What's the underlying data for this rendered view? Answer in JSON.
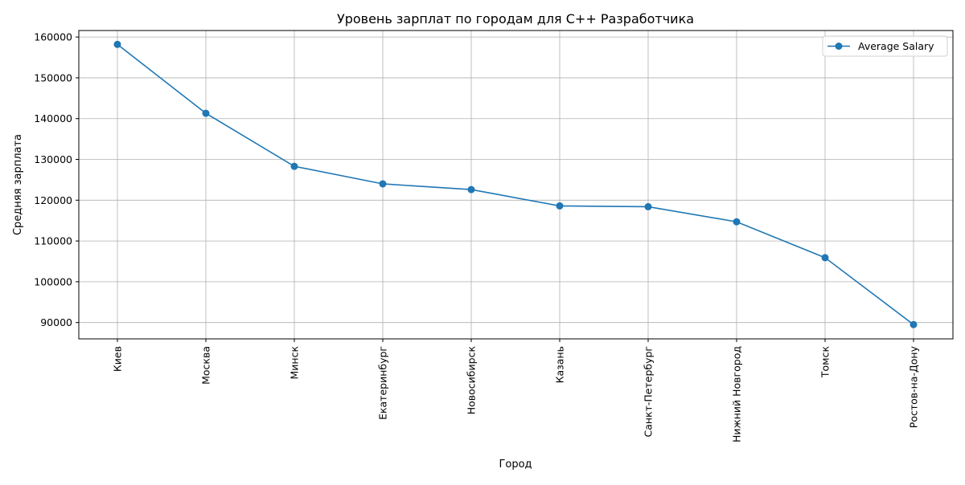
{
  "chart_data": {
    "type": "line",
    "title": "Уровень зарплат по городам для C++ Разработчика",
    "xlabel": "Город",
    "ylabel": "Средняя зарплата",
    "categories": [
      "Киев",
      "Москва",
      "Минск",
      "Екатеринбург",
      "Новосибирск",
      "Казань",
      "Санкт-Петербург",
      "Нижний Новгород",
      "Томск",
      "Ростов-на-Дону"
    ],
    "series": [
      {
        "name": "Average Salary",
        "values": [
          158200,
          141300,
          128300,
          124000,
          122600,
          118600,
          118400,
          114700,
          105900,
          89500
        ],
        "color": "#1f77b4",
        "marker": "circle"
      }
    ],
    "yticks": [
      90000,
      100000,
      110000,
      120000,
      130000,
      140000,
      150000,
      160000
    ],
    "ylim": [
      86000,
      161600
    ],
    "grid": true,
    "legend_position": "top-right",
    "x_tick_rotation": "vertical"
  }
}
